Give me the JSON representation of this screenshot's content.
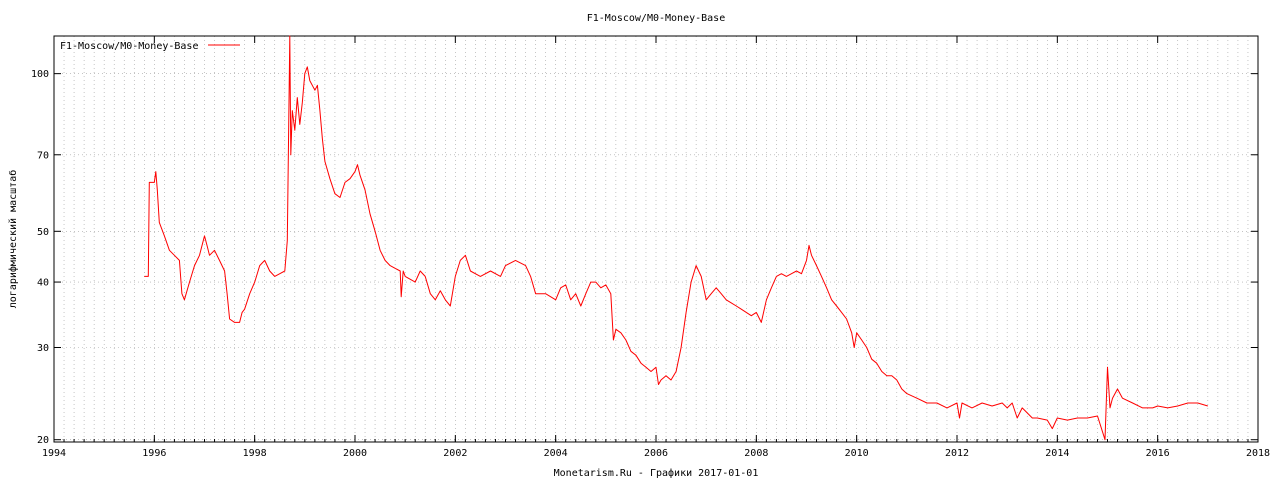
{
  "chart_data": {
    "type": "line",
    "title": "F1-Moscow/M0-Money-Base",
    "xlabel": "Monetarism.Ru - Графики  2017-01-01",
    "ylabel": "логарифмический масштаб",
    "y_scale": "log",
    "xlim": [
      1994,
      2018
    ],
    "ylim": [
      19.8,
      118
    ],
    "x_ticks": [
      1994,
      1996,
      1998,
      2000,
      2002,
      2004,
      2006,
      2008,
      2010,
      2012,
      2014,
      2016,
      2018
    ],
    "y_ticks": [
      20,
      30,
      40,
      50,
      70,
      100
    ],
    "grid": true,
    "legend": "top-left",
    "series": [
      {
        "name": "F1-Moscow/M0-Money-Base",
        "color": "#ff0000",
        "points": [
          [
            1995.8,
            41
          ],
          [
            1995.88,
            41
          ],
          [
            1995.9,
            62
          ],
          [
            1996.0,
            62
          ],
          [
            1996.03,
            65
          ],
          [
            1996.06,
            60
          ],
          [
            1996.1,
            52
          ],
          [
            1996.2,
            49
          ],
          [
            1996.3,
            46
          ],
          [
            1996.4,
            45
          ],
          [
            1996.5,
            44
          ],
          [
            1996.55,
            38
          ],
          [
            1996.6,
            37
          ],
          [
            1996.7,
            40
          ],
          [
            1996.8,
            43
          ],
          [
            1996.9,
            45
          ],
          [
            1997.0,
            49
          ],
          [
            1997.05,
            47
          ],
          [
            1997.1,
            45
          ],
          [
            1997.2,
            46
          ],
          [
            1997.3,
            44
          ],
          [
            1997.4,
            42
          ],
          [
            1997.45,
            38
          ],
          [
            1997.5,
            34
          ],
          [
            1997.6,
            33.5
          ],
          [
            1997.7,
            33.5
          ],
          [
            1997.75,
            35
          ],
          [
            1997.8,
            35.5
          ],
          [
            1997.9,
            38
          ],
          [
            1998.0,
            40
          ],
          [
            1998.1,
            43
          ],
          [
            1998.2,
            44
          ],
          [
            1998.3,
            42
          ],
          [
            1998.4,
            41
          ],
          [
            1998.5,
            41.5
          ],
          [
            1998.6,
            42
          ],
          [
            1998.65,
            48
          ],
          [
            1998.7,
            118
          ],
          [
            1998.72,
            70
          ],
          [
            1998.75,
            85
          ],
          [
            1998.8,
            78
          ],
          [
            1998.85,
            90
          ],
          [
            1998.9,
            80
          ],
          [
            1998.95,
            88
          ],
          [
            1999.0,
            100
          ],
          [
            1999.05,
            103
          ],
          [
            1999.1,
            97
          ],
          [
            1999.2,
            93
          ],
          [
            1999.25,
            95
          ],
          [
            1999.3,
            85
          ],
          [
            1999.35,
            75
          ],
          [
            1999.4,
            68
          ],
          [
            1999.5,
            63
          ],
          [
            1999.6,
            59
          ],
          [
            1999.7,
            58
          ],
          [
            1999.8,
            62
          ],
          [
            1999.9,
            63
          ],
          [
            2000.0,
            65
          ],
          [
            2000.05,
            67
          ],
          [
            2000.1,
            64
          ],
          [
            2000.2,
            60
          ],
          [
            2000.3,
            54
          ],
          [
            2000.4,
            50
          ],
          [
            2000.5,
            46
          ],
          [
            2000.6,
            44
          ],
          [
            2000.7,
            43
          ],
          [
            2000.8,
            42.5
          ],
          [
            2000.9,
            42
          ],
          [
            2000.92,
            37.5
          ],
          [
            2000.96,
            42
          ],
          [
            2001.0,
            41
          ],
          [
            2001.2,
            40
          ],
          [
            2001.3,
            42
          ],
          [
            2001.4,
            41
          ],
          [
            2001.5,
            38
          ],
          [
            2001.6,
            37
          ],
          [
            2001.7,
            38.5
          ],
          [
            2001.8,
            37
          ],
          [
            2001.9,
            36
          ],
          [
            2002.0,
            41
          ],
          [
            2002.1,
            44
          ],
          [
            2002.2,
            45
          ],
          [
            2002.3,
            42
          ],
          [
            2002.5,
            41
          ],
          [
            2002.7,
            42
          ],
          [
            2002.9,
            41
          ],
          [
            2003.0,
            43
          ],
          [
            2003.2,
            44
          ],
          [
            2003.4,
            43
          ],
          [
            2003.5,
            41
          ],
          [
            2003.6,
            38
          ],
          [
            2003.8,
            38
          ],
          [
            2004.0,
            37
          ],
          [
            2004.1,
            39
          ],
          [
            2004.2,
            39.5
          ],
          [
            2004.3,
            37
          ],
          [
            2004.4,
            38
          ],
          [
            2004.5,
            36
          ],
          [
            2004.6,
            38
          ],
          [
            2004.7,
            40
          ],
          [
            2004.8,
            40
          ],
          [
            2004.9,
            39
          ],
          [
            2005.0,
            39.5
          ],
          [
            2005.1,
            38
          ],
          [
            2005.15,
            31
          ],
          [
            2005.2,
            32.5
          ],
          [
            2005.3,
            32
          ],
          [
            2005.4,
            31
          ],
          [
            2005.5,
            29.5
          ],
          [
            2005.6,
            29
          ],
          [
            2005.7,
            28
          ],
          [
            2005.8,
            27.5
          ],
          [
            2005.9,
            27
          ],
          [
            2006.0,
            27.5
          ],
          [
            2006.05,
            25.5
          ],
          [
            2006.1,
            26
          ],
          [
            2006.2,
            26.5
          ],
          [
            2006.3,
            26
          ],
          [
            2006.4,
            27
          ],
          [
            2006.5,
            30
          ],
          [
            2006.6,
            35
          ],
          [
            2006.7,
            40
          ],
          [
            2006.8,
            43
          ],
          [
            2006.9,
            41
          ],
          [
            2007.0,
            37
          ],
          [
            2007.1,
            38
          ],
          [
            2007.2,
            39
          ],
          [
            2007.3,
            38
          ],
          [
            2007.4,
            37
          ],
          [
            2007.5,
            36.5
          ],
          [
            2007.6,
            36
          ],
          [
            2007.7,
            35.5
          ],
          [
            2007.8,
            35
          ],
          [
            2007.9,
            34.5
          ],
          [
            2008.0,
            35
          ],
          [
            2008.1,
            33.5
          ],
          [
            2008.2,
            37
          ],
          [
            2008.3,
            39
          ],
          [
            2008.4,
            41
          ],
          [
            2008.5,
            41.5
          ],
          [
            2008.6,
            41
          ],
          [
            2008.7,
            41.5
          ],
          [
            2008.8,
            42
          ],
          [
            2008.9,
            41.5
          ],
          [
            2009.0,
            44
          ],
          [
            2009.05,
            47
          ],
          [
            2009.1,
            45
          ],
          [
            2009.2,
            43
          ],
          [
            2009.3,
            41
          ],
          [
            2009.4,
            39
          ],
          [
            2009.5,
            37
          ],
          [
            2009.6,
            36
          ],
          [
            2009.7,
            35
          ],
          [
            2009.8,
            34
          ],
          [
            2009.9,
            32
          ],
          [
            2009.95,
            30
          ],
          [
            2010.0,
            32
          ],
          [
            2010.1,
            31
          ],
          [
            2010.2,
            30
          ],
          [
            2010.3,
            28.5
          ],
          [
            2010.4,
            28
          ],
          [
            2010.5,
            27
          ],
          [
            2010.6,
            26.5
          ],
          [
            2010.7,
            26.5
          ],
          [
            2010.8,
            26
          ],
          [
            2010.9,
            25
          ],
          [
            2011.0,
            24.5
          ],
          [
            2011.2,
            24
          ],
          [
            2011.4,
            23.5
          ],
          [
            2011.6,
            23.5
          ],
          [
            2011.8,
            23
          ],
          [
            2012.0,
            23.5
          ],
          [
            2012.05,
            22
          ],
          [
            2012.1,
            23.5
          ],
          [
            2012.3,
            23
          ],
          [
            2012.5,
            23.5
          ],
          [
            2012.7,
            23.2
          ],
          [
            2012.9,
            23.5
          ],
          [
            2013.0,
            23
          ],
          [
            2013.1,
            23.5
          ],
          [
            2013.2,
            22
          ],
          [
            2013.3,
            23
          ],
          [
            2013.4,
            22.5
          ],
          [
            2013.5,
            22
          ],
          [
            2013.6,
            22
          ],
          [
            2013.8,
            21.8
          ],
          [
            2013.9,
            21
          ],
          [
            2014.0,
            22
          ],
          [
            2014.2,
            21.8
          ],
          [
            2014.4,
            22
          ],
          [
            2014.6,
            22
          ],
          [
            2014.8,
            22.2
          ],
          [
            2014.95,
            20
          ],
          [
            2015.0,
            27.5
          ],
          [
            2015.05,
            23
          ],
          [
            2015.1,
            24
          ],
          [
            2015.2,
            25
          ],
          [
            2015.3,
            24
          ],
          [
            2015.5,
            23.5
          ],
          [
            2015.7,
            23
          ],
          [
            2015.9,
            23
          ],
          [
            2016.0,
            23.2
          ],
          [
            2016.2,
            23
          ],
          [
            2016.4,
            23.2
          ],
          [
            2016.6,
            23.5
          ],
          [
            2016.8,
            23.5
          ],
          [
            2017.0,
            23.2
          ]
        ]
      }
    ]
  }
}
